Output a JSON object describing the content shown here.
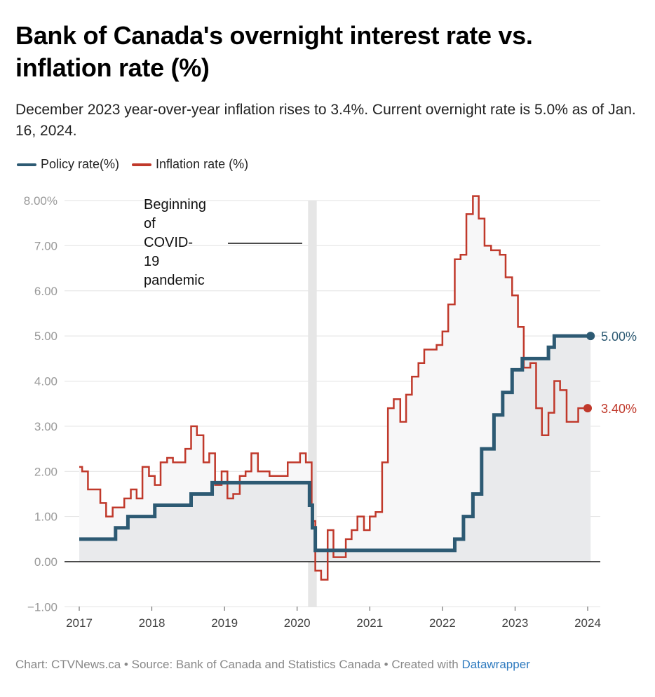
{
  "header": {
    "title": "Bank of Canada's overnight interest rate vs. inflation rate (%)",
    "subtitle": "December 2023 year-over-year inflation rises to 3.4%. Current overnight rate is 5.0% as of Jan. 16, 2024."
  },
  "legend": [
    {
      "label": "Policy rate(%)",
      "color": "#2d5a73"
    },
    {
      "label": "Inflation rate (%)",
      "color": "#c0392b"
    }
  ],
  "footer": {
    "text": "Chart: CTVNews.ca • Source: Bank of Canada and Statistics Canada • Created with ",
    "link": "Datawrapper"
  },
  "chart_data": {
    "type": "line",
    "xlim": [
      2017,
      2024.1
    ],
    "ylim": [
      -1,
      8
    ],
    "x_ticks": [
      "2017",
      "2018",
      "2019",
      "2020",
      "2021",
      "2022",
      "2023",
      "2024"
    ],
    "y_ticks": [
      {
        "value": 8,
        "label": "8.00%"
      },
      {
        "value": 7,
        "label": "7.00"
      },
      {
        "value": 6,
        "label": "6.00"
      },
      {
        "value": 5,
        "label": "5.00"
      },
      {
        "value": 4,
        "label": "4.00"
      },
      {
        "value": 3,
        "label": "3.00"
      },
      {
        "value": 2,
        "label": "2.00"
      },
      {
        "value": 1,
        "label": "1.00"
      },
      {
        "value": 0,
        "label": "0.00"
      },
      {
        "value": -1,
        "label": "−1.00"
      }
    ],
    "annotation": {
      "text_lines": [
        "Beginning",
        "of",
        "COVID-",
        "19",
        "pandemic"
      ],
      "band_x": [
        2020.15,
        2020.27
      ]
    },
    "series": [
      {
        "name": "Policy rate(%)",
        "color": "#2d5a73",
        "end_label": "5.00%",
        "points": [
          [
            2017.0,
            0.5
          ],
          [
            2017.5,
            0.75
          ],
          [
            2017.67,
            1.0
          ],
          [
            2018.04,
            1.25
          ],
          [
            2018.54,
            1.5
          ],
          [
            2018.83,
            1.75
          ],
          [
            2020.17,
            1.25
          ],
          [
            2020.21,
            0.75
          ],
          [
            2020.25,
            0.25
          ],
          [
            2022.17,
            0.5
          ],
          [
            2022.29,
            1.0
          ],
          [
            2022.42,
            1.5
          ],
          [
            2022.54,
            2.5
          ],
          [
            2022.71,
            3.25
          ],
          [
            2022.83,
            3.75
          ],
          [
            2022.96,
            4.25
          ],
          [
            2023.1,
            4.5
          ],
          [
            2023.46,
            4.75
          ],
          [
            2023.54,
            5.0
          ],
          [
            2024.04,
            5.0
          ]
        ]
      },
      {
        "name": "Inflation rate (%)",
        "color": "#c0392b",
        "end_label": "3.40%",
        "points": [
          [
            2017.0,
            2.1
          ],
          [
            2017.04,
            2.0
          ],
          [
            2017.12,
            1.6
          ],
          [
            2017.29,
            1.3
          ],
          [
            2017.37,
            1.0
          ],
          [
            2017.46,
            1.2
          ],
          [
            2017.54,
            1.2
          ],
          [
            2017.62,
            1.4
          ],
          [
            2017.71,
            1.6
          ],
          [
            2017.79,
            1.4
          ],
          [
            2017.87,
            2.1
          ],
          [
            2017.96,
            1.9
          ],
          [
            2018.04,
            1.7
          ],
          [
            2018.12,
            2.2
          ],
          [
            2018.21,
            2.3
          ],
          [
            2018.29,
            2.2
          ],
          [
            2018.37,
            2.2
          ],
          [
            2018.46,
            2.5
          ],
          [
            2018.54,
            3.0
          ],
          [
            2018.62,
            2.8
          ],
          [
            2018.71,
            2.2
          ],
          [
            2018.79,
            2.4
          ],
          [
            2018.87,
            1.7
          ],
          [
            2018.96,
            2.0
          ],
          [
            2019.04,
            1.4
          ],
          [
            2019.12,
            1.5
          ],
          [
            2019.21,
            1.9
          ],
          [
            2019.29,
            2.0
          ],
          [
            2019.37,
            2.4
          ],
          [
            2019.46,
            2.0
          ],
          [
            2019.62,
            1.9
          ],
          [
            2019.87,
            2.2
          ],
          [
            2020.04,
            2.4
          ],
          [
            2020.12,
            2.2
          ],
          [
            2020.2,
            0.9
          ],
          [
            2020.25,
            -0.2
          ],
          [
            2020.33,
            -0.4
          ],
          [
            2020.42,
            0.7
          ],
          [
            2020.5,
            0.1
          ],
          [
            2020.67,
            0.5
          ],
          [
            2020.75,
            0.7
          ],
          [
            2020.83,
            1.0
          ],
          [
            2020.92,
            0.7
          ],
          [
            2021.0,
            1.0
          ],
          [
            2021.08,
            1.1
          ],
          [
            2021.17,
            2.2
          ],
          [
            2021.25,
            3.4
          ],
          [
            2021.33,
            3.6
          ],
          [
            2021.42,
            3.1
          ],
          [
            2021.5,
            3.7
          ],
          [
            2021.58,
            4.1
          ],
          [
            2021.67,
            4.4
          ],
          [
            2021.75,
            4.7
          ],
          [
            2021.92,
            4.8
          ],
          [
            2022.0,
            5.1
          ],
          [
            2022.08,
            5.7
          ],
          [
            2022.17,
            6.7
          ],
          [
            2022.25,
            6.8
          ],
          [
            2022.33,
            7.7
          ],
          [
            2022.42,
            8.1
          ],
          [
            2022.5,
            7.6
          ],
          [
            2022.58,
            7.0
          ],
          [
            2022.67,
            6.9
          ],
          [
            2022.79,
            6.8
          ],
          [
            2022.87,
            6.3
          ],
          [
            2022.96,
            5.9
          ],
          [
            2023.04,
            5.2
          ],
          [
            2023.12,
            4.3
          ],
          [
            2023.21,
            4.4
          ],
          [
            2023.29,
            3.4
          ],
          [
            2023.37,
            2.8
          ],
          [
            2023.46,
            3.3
          ],
          [
            2023.54,
            4.0
          ],
          [
            2023.62,
            3.8
          ],
          [
            2023.71,
            3.1
          ],
          [
            2023.87,
            3.4
          ],
          [
            2024.0,
            3.4
          ]
        ]
      }
    ]
  }
}
